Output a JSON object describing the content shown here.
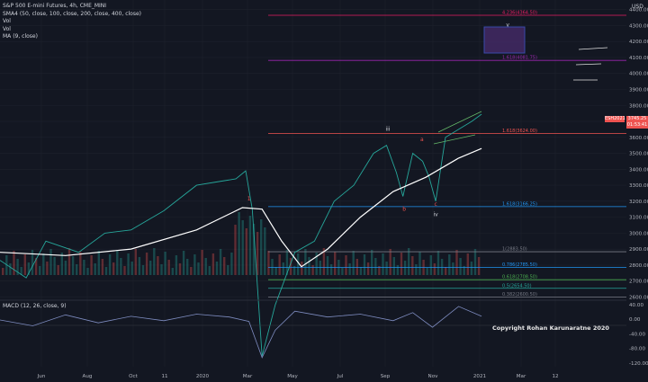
{
  "header": {
    "title": "S&P 500 E-mini Futures, 4h, CME_MINI",
    "indicators": [
      "SMA4 (50, close, 100, close, 200, close, 400, close)",
      "Vol",
      "Vol",
      "MA (9, close)"
    ],
    "currency": "USD"
  },
  "price_tag": {
    "label": "ESH2021",
    "price": "3745.25",
    "countdown": "01:53:41"
  },
  "macd": {
    "label": "MACD (12, 26, close, 9)"
  },
  "copyright": "Copyright Rohan Karunaratne 2020",
  "fib_labels": [
    {
      "text": "4.236(4364.50)",
      "price": 4364.5,
      "color": "#e91e63",
      "x0": 0.41
    },
    {
      "text": "1.618(4081.75)",
      "price": 4081.75,
      "color": "#9c27b0",
      "x0": 0.41
    },
    {
      "text": "1.618(3624.00)",
      "price": 3624,
      "color": "#ef5350",
      "x0": 0.41
    },
    {
      "text": "1.618(3166.25)",
      "price": 3166.25,
      "color": "#2196f3",
      "x0": 0.41
    },
    {
      "text": "1(2883.50)",
      "price": 2883.5,
      "color": "#787b86",
      "x0": 0.41
    },
    {
      "text": "0.786(2785.50)",
      "price": 2785.5,
      "color": "#2196f3",
      "x0": 0.41
    },
    {
      "text": "0.618(2708.50)",
      "price": 2708.5,
      "color": "#4caf50",
      "x0": 0.41
    },
    {
      "text": "0.5(2654.50)",
      "price": 2654.5,
      "color": "#26a69a",
      "x0": 0.41
    },
    {
      "text": "0.382(2600.50)",
      "price": 2600.5,
      "color": "#787b86",
      "x0": 0.41
    }
  ],
  "wave_labels": [
    {
      "text": "iii",
      "t": 0.592,
      "price": 3640,
      "color": "#d1d4dc"
    },
    {
      "text": "a",
      "t": 0.644,
      "price": 3575,
      "color": "#ef5350"
    },
    {
      "text": "b",
      "t": 0.617,
      "price": 3140,
      "color": "#ef5350"
    },
    {
      "text": "c",
      "t": 0.665,
      "price": 3170,
      "color": "#ef5350"
    },
    {
      "text": "iv",
      "t": 0.665,
      "price": 3105,
      "color": "#d1d4dc"
    },
    {
      "text": "v",
      "t": 0.775,
      "price": 4295,
      "color": "#d1d4dc"
    },
    {
      "text": "1",
      "t": 0.38,
      "price": 3205,
      "color": "#ef5350"
    }
  ],
  "chart_data": {
    "type": "line",
    "symbol": "ES 4h",
    "x_ticks": [
      "Jun",
      "Aug",
      "Oct",
      "11",
      "2020",
      "Mar",
      "May",
      "Jul",
      "Sep",
      "Nov",
      "2021",
      "Mar",
      "12"
    ],
    "y_ticks": [
      2600,
      2700,
      2800,
      2900,
      3000,
      3100,
      3200,
      3300,
      3400,
      3500,
      3600,
      3700,
      3800,
      3900,
      4000,
      4100,
      4200,
      4300,
      4400
    ],
    "ylim": [
      2580,
      4460
    ],
    "macd_ticks": [
      40.0,
      0.0,
      -40.0,
      -80.0,
      -120.0
    ],
    "macd_ylim": [
      -130,
      52
    ],
    "price_series": {
      "t": [
        0,
        0.04,
        0.07,
        0.12,
        0.16,
        0.2,
        0.25,
        0.3,
        0.33,
        0.36,
        0.375,
        0.385,
        0.4,
        0.42,
        0.45,
        0.48,
        0.51,
        0.54,
        0.57,
        0.59,
        0.605,
        0.615,
        0.63,
        0.645,
        0.655,
        0.665,
        0.68,
        0.7,
        0.72,
        0.735
      ],
      "price": [
        2830,
        2720,
        2950,
        2880,
        3000,
        3020,
        3140,
        3300,
        3320,
        3340,
        3390,
        3150,
        2230,
        2550,
        2880,
        2950,
        3200,
        3300,
        3500,
        3550,
        3380,
        3230,
        3500,
        3450,
        3350,
        3200,
        3600,
        3650,
        3700,
        3745
      ]
    },
    "ma_series": {
      "t": [
        0,
        0.1,
        0.2,
        0.3,
        0.37,
        0.4,
        0.43,
        0.46,
        0.5,
        0.55,
        0.6,
        0.65,
        0.7,
        0.735
      ],
      "price": [
        2880,
        2860,
        2900,
        3020,
        3160,
        3150,
        2950,
        2790,
        2900,
        3100,
        3260,
        3350,
        3470,
        3530
      ]
    },
    "macd_series": {
      "t": [
        0,
        0.05,
        0.1,
        0.15,
        0.2,
        0.25,
        0.3,
        0.35,
        0.38,
        0.4,
        0.42,
        0.45,
        0.5,
        0.55,
        0.6,
        0.63,
        0.66,
        0.7,
        0.735
      ],
      "value": [
        -2,
        -18,
        12,
        -10,
        8,
        -4,
        14,
        6,
        -6,
        -105,
        -30,
        22,
        6,
        14,
        -4,
        18,
        -22,
        35,
        8
      ]
    }
  }
}
